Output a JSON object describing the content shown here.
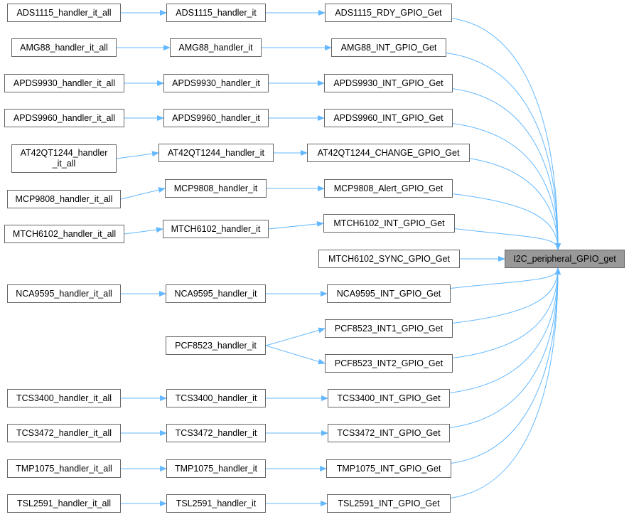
{
  "target": {
    "id": "t",
    "label": "I2C_peripheral_GPIO_get"
  },
  "nodes": [
    {
      "id": "a1",
      "label": "ADS1115_handler_it_all"
    },
    {
      "id": "a2",
      "label": "AMG88_handler_it_all"
    },
    {
      "id": "a3",
      "label": "APDS9930_handler_it_all"
    },
    {
      "id": "a4",
      "label": "APDS9960_handler_it_all"
    },
    {
      "id": "a5",
      "label": "AT42QT1244_handler\n_it_all"
    },
    {
      "id": "a6",
      "label": "MCP9808_handler_it_all"
    },
    {
      "id": "a7",
      "label": "MTCH6102_handler_it_all"
    },
    {
      "id": "a8",
      "label": "NCA9595_handler_it_all"
    },
    {
      "id": "a9",
      "label": "TCS3400_handler_it_all"
    },
    {
      "id": "a10",
      "label": "TCS3472_handler_it_all"
    },
    {
      "id": "a11",
      "label": "TMP1075_handler_it_all"
    },
    {
      "id": "a12",
      "label": "TSL2591_handler_it_all"
    },
    {
      "id": "b1",
      "label": "ADS1115_handler_it"
    },
    {
      "id": "b2",
      "label": "AMG88_handler_it"
    },
    {
      "id": "b3",
      "label": "APDS9930_handler_it"
    },
    {
      "id": "b4",
      "label": "APDS9960_handler_it"
    },
    {
      "id": "b5",
      "label": "AT42QT1244_handler_it"
    },
    {
      "id": "b6",
      "label": "MCP9808_handler_it"
    },
    {
      "id": "b7",
      "label": "MTCH6102_handler_it"
    },
    {
      "id": "b8",
      "label": "NCA9595_handler_it"
    },
    {
      "id": "b9",
      "label": "PCF8523_handler_it"
    },
    {
      "id": "b10",
      "label": "TCS3400_handler_it"
    },
    {
      "id": "b11",
      "label": "TCS3472_handler_it"
    },
    {
      "id": "b12",
      "label": "TMP1075_handler_it"
    },
    {
      "id": "b13",
      "label": "TSL2591_handler_it"
    },
    {
      "id": "c1",
      "label": "ADS1115_RDY_GPIO_Get"
    },
    {
      "id": "c2",
      "label": "AMG88_INT_GPIO_Get"
    },
    {
      "id": "c3",
      "label": "APDS9930_INT_GPIO_Get"
    },
    {
      "id": "c4",
      "label": "APDS9960_INT_GPIO_Get"
    },
    {
      "id": "c5",
      "label": "AT42QT1244_CHANGE_GPIO_Get"
    },
    {
      "id": "c6",
      "label": "MCP9808_Alert_GPIO_Get"
    },
    {
      "id": "c7",
      "label": "MTCH6102_INT_GPIO_Get"
    },
    {
      "id": "c8",
      "label": "MTCH6102_SYNC_GPIO_Get"
    },
    {
      "id": "c9",
      "label": "NCA9595_INT_GPIO_Get"
    },
    {
      "id": "c10",
      "label": "PCF8523_INT1_GPIO_Get"
    },
    {
      "id": "c11",
      "label": "PCF8523_INT2_GPIO_Get"
    },
    {
      "id": "c12",
      "label": "TCS3400_INT_GPIO_Get"
    },
    {
      "id": "c13",
      "label": "TCS3472_INT_GPIO_Get"
    },
    {
      "id": "c14",
      "label": "TMP1075_INT_GPIO_Get"
    },
    {
      "id": "c15",
      "label": "TSL2591_INT_GPIO_Get"
    }
  ],
  "edges": [
    [
      "a1",
      "b1"
    ],
    [
      "a2",
      "b2"
    ],
    [
      "a3",
      "b3"
    ],
    [
      "a4",
      "b4"
    ],
    [
      "a5",
      "b5"
    ],
    [
      "a6",
      "b6"
    ],
    [
      "a7",
      "b7"
    ],
    [
      "a8",
      "b8"
    ],
    [
      "a9",
      "b10"
    ],
    [
      "a10",
      "b11"
    ],
    [
      "a11",
      "b12"
    ],
    [
      "a12",
      "b13"
    ],
    [
      "b1",
      "c1"
    ],
    [
      "b2",
      "c2"
    ],
    [
      "b3",
      "c3"
    ],
    [
      "b4",
      "c4"
    ],
    [
      "b5",
      "c5"
    ],
    [
      "b6",
      "c6"
    ],
    [
      "b7",
      "c7"
    ],
    [
      "b8",
      "c9"
    ],
    [
      "b9",
      "c10"
    ],
    [
      "b9",
      "c11"
    ],
    [
      "b10",
      "c12"
    ],
    [
      "b11",
      "c13"
    ],
    [
      "b12",
      "c14"
    ],
    [
      "b13",
      "c15"
    ],
    [
      "c1",
      "t"
    ],
    [
      "c2",
      "t"
    ],
    [
      "c3",
      "t"
    ],
    [
      "c4",
      "t"
    ],
    [
      "c5",
      "t"
    ],
    [
      "c6",
      "t"
    ],
    [
      "c7",
      "t"
    ],
    [
      "c8",
      "t"
    ],
    [
      "c9",
      "t"
    ],
    [
      "c10",
      "t"
    ],
    [
      "c11",
      "t"
    ],
    [
      "c12",
      "t"
    ],
    [
      "c13",
      "t"
    ],
    [
      "c14",
      "t"
    ],
    [
      "c15",
      "t"
    ]
  ],
  "colors": {
    "edge": "#63b8ff",
    "border": "#666666",
    "target_fill": "#999999"
  }
}
